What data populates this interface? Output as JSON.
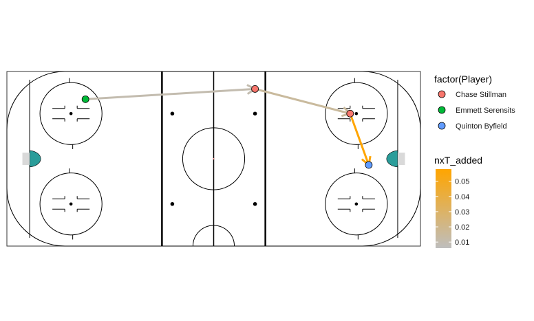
{
  "chart_data": {
    "type": "scatter",
    "title": "",
    "xlabel": "",
    "ylabel": "",
    "xlim": [
      -100,
      100
    ],
    "ylim": [
      -42.5,
      42.5
    ],
    "grid": false,
    "legend_position": "right",
    "player_legend": {
      "title": "factor(Player)",
      "entries": [
        {
          "name": "Chase Stillman",
          "color": "#F8766D"
        },
        {
          "name": "Emmett Serensits",
          "color": "#00BA38"
        },
        {
          "name": "Quinton Byfield",
          "color": "#619CFF"
        }
      ]
    },
    "colorbar": {
      "title": "nxT_added",
      "range": [
        0.006,
        0.058
      ],
      "low_color": "#BEBEBE",
      "high_color": "#FFA500",
      "ticks": [
        0.01,
        0.02,
        0.03,
        0.04,
        0.05
      ],
      "tick_labels": [
        "0.01",
        "0.02",
        "0.03",
        "0.04",
        "0.05"
      ]
    },
    "points": [
      {
        "player": "Emmett Serensits",
        "x": -62,
        "y": 29
      },
      {
        "player": "Chase Stillman",
        "x": 20,
        "y": 34
      },
      {
        "player": "Chase Stillman",
        "x": 66,
        "y": 22
      },
      {
        "player": "Quinton Byfield",
        "x": 75,
        "y": -3
      }
    ],
    "passes": [
      {
        "x_start": -62,
        "y_start": 29,
        "x_end": 20,
        "y_end": 34,
        "nxT_added": 0.01
      },
      {
        "x_start": 20,
        "y_start": 34,
        "x_end": 66,
        "y_end": 22,
        "nxT_added": 0.015
      },
      {
        "x_start": 66,
        "y_start": 22,
        "x_end": 75,
        "y_end": -3,
        "nxT_added": 0.058
      }
    ]
  }
}
